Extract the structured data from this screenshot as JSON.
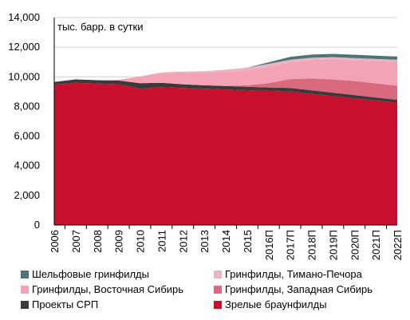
{
  "chart_data": {
    "type": "area",
    "stacked": true,
    "unit_label": "тыс. барр. в сутки",
    "categories": [
      "2006",
      "2007",
      "2008",
      "2009",
      "2010",
      "2011",
      "2012",
      "2013",
      "2014",
      "2015",
      "2016П",
      "2017П",
      "2018П",
      "2019П",
      "2020П",
      "2021П",
      "2022П"
    ],
    "ylim": [
      0,
      14000
    ],
    "yticks": [
      0,
      2000,
      4000,
      6000,
      8000,
      10000,
      12000,
      14000
    ],
    "ytick_labels": [
      "0",
      "2,000",
      "4,000",
      "6,000",
      "8,000",
      "10,000",
      "12,000",
      "14,000"
    ],
    "grid": "horizontal",
    "legend_position": "bottom",
    "series": [
      {
        "name": "Зрелые браунфилды",
        "color": "#c8102e",
        "values": [
          9500,
          9600,
          9550,
          9500,
          9200,
          9300,
          9250,
          9200,
          9150,
          9100,
          9050,
          9000,
          8850,
          8700,
          8550,
          8400,
          8250
        ]
      },
      {
        "name": "Проекты СРП",
        "color": "#3a3a3a",
        "values": [
          150,
          230,
          220,
          250,
          370,
          300,
          250,
          230,
          230,
          230,
          230,
          250,
          240,
          230,
          220,
          210,
          200
        ]
      },
      {
        "name": "Гринфилды, Западная Сибирь",
        "color": "#d9697e",
        "values": [
          0,
          0,
          0,
          0,
          0,
          0,
          0,
          0,
          0,
          100,
          300,
          600,
          800,
          900,
          950,
          950,
          950
        ]
      },
      {
        "name": "Гринфилды, Восточная Сибирь",
        "color": "#f4a2b6",
        "values": [
          0,
          0,
          0,
          50,
          450,
          650,
          800,
          850,
          950,
          1000,
          1100,
          1100,
          1250,
          1350,
          1400,
          1500,
          1600
        ]
      },
      {
        "name": "Гринфилды, Тимано-Печора",
        "color": "#e8b4c2",
        "values": [
          0,
          0,
          0,
          0,
          0,
          50,
          60,
          100,
          150,
          200,
          200,
          200,
          150,
          150,
          150,
          150,
          150
        ]
      },
      {
        "name": "Шельфовые гринфилды",
        "color": "#4e7476",
        "values": [
          0,
          0,
          0,
          0,
          0,
          0,
          0,
          0,
          0,
          0,
          100,
          200,
          210,
          220,
          220,
          220,
          220
        ]
      }
    ],
    "legend_order": [
      "Шельфовые гринфилды",
      "Гринфилды, Тимано-Печора",
      "Гринфилды, Восточная Сибирь",
      "Гринфилды, Западная Сибирь",
      "Проекты СРП",
      "Зрелые браунфилды"
    ]
  }
}
